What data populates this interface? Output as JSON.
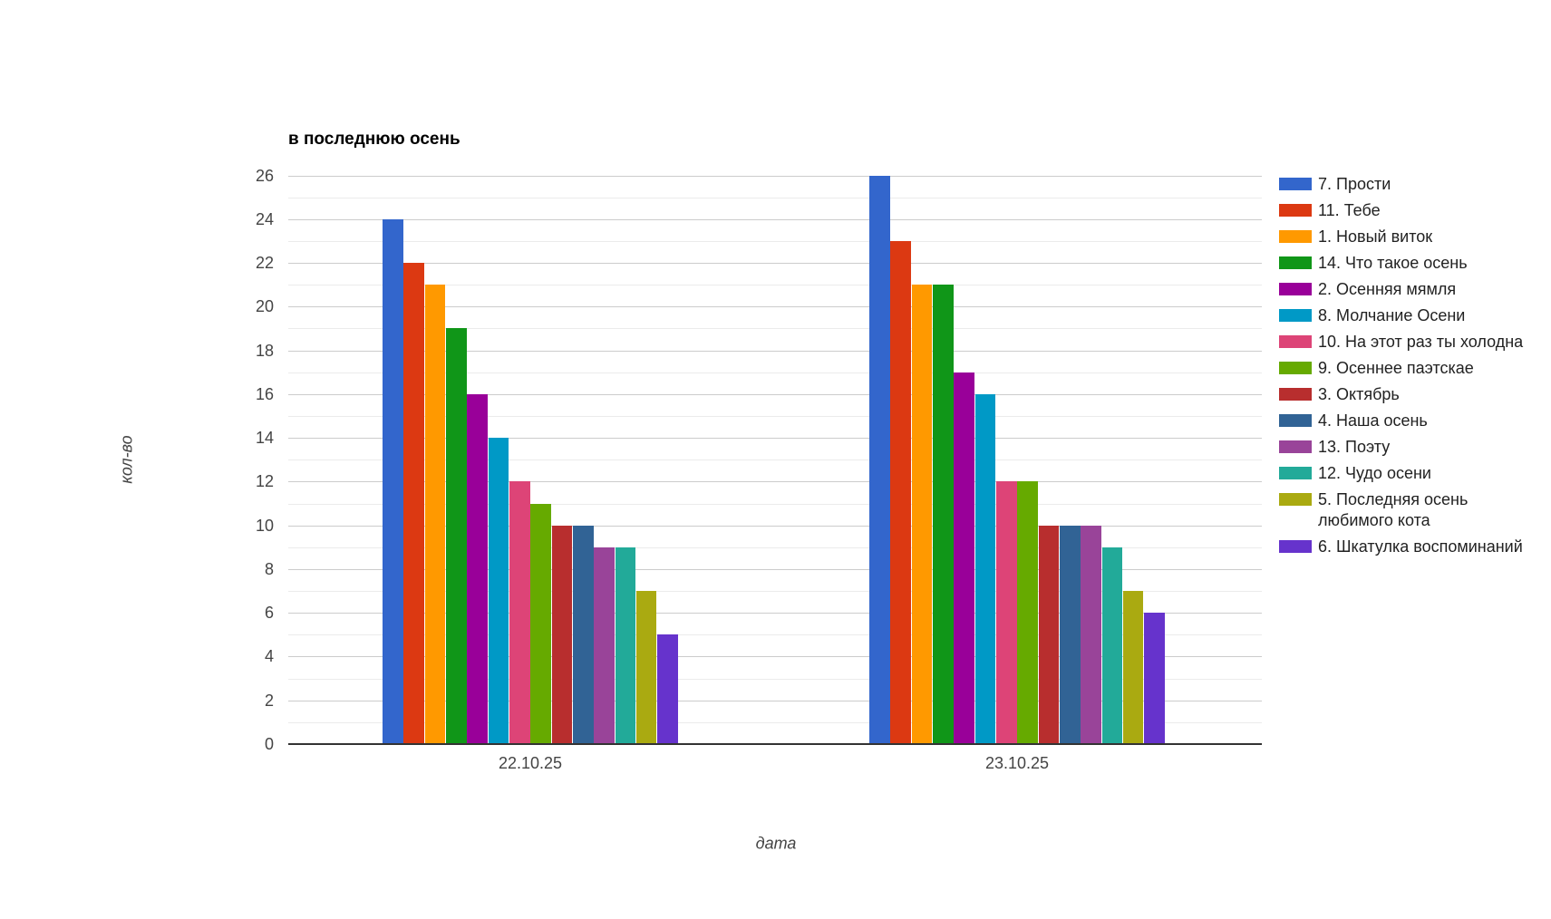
{
  "chart_data": {
    "type": "bar",
    "title": "в последнюю осень",
    "xlabel": "дата",
    "ylabel": "кол-во",
    "categories": [
      "22.10.25",
      "23.10.25"
    ],
    "series": [
      {
        "name": "7. Прости",
        "color": "#3366CC",
        "values": [
          24,
          26
        ]
      },
      {
        "name": "11. Тебе",
        "color": "#DC3912",
        "values": [
          22,
          23
        ]
      },
      {
        "name": "1. Новый виток",
        "color": "#FF9900",
        "values": [
          21,
          21
        ]
      },
      {
        "name": "14. Что такое осень",
        "color": "#109618",
        "values": [
          19,
          21
        ]
      },
      {
        "name": "2. Осенняя мямля",
        "color": "#990099",
        "values": [
          16,
          17
        ]
      },
      {
        "name": "8. Молчание Осени",
        "color": "#0099C6",
        "values": [
          14,
          16
        ]
      },
      {
        "name": "10. На этот раз ты холодна",
        "color": "#DD4477",
        "values": [
          12,
          12
        ]
      },
      {
        "name": "9. Осеннее паэтскае",
        "color": "#66AA00",
        "values": [
          11,
          12
        ]
      },
      {
        "name": "3. Октябрь",
        "color": "#B82E2E",
        "values": [
          10,
          10
        ]
      },
      {
        "name": "4. Наша осень",
        "color": "#316395",
        "values": [
          10,
          10
        ]
      },
      {
        "name": "13. Поэту",
        "color": "#994499",
        "values": [
          9,
          10
        ]
      },
      {
        "name": "12. Чудо осени",
        "color": "#22AA99",
        "values": [
          9,
          9
        ]
      },
      {
        "name": "5. Последняя осень\nлюбимого кота",
        "color": "#AAAA11",
        "values": [
          7,
          7
        ]
      },
      {
        "name": "6. Шкатулка воспоминаний",
        "color": "#6633CC",
        "values": [
          5,
          6
        ]
      }
    ],
    "ylim": [
      0,
      26
    ],
    "ytick_interval": 2,
    "minor_gridline_interval": 1,
    "grid": "horizontal",
    "legend_position": "right"
  },
  "colors": {
    "background": "#ffffff",
    "title_text": "#000000",
    "tick_text": "#444444",
    "legend_text": "#222222",
    "axis_line": "#333333",
    "major_gridline": "#cccccc",
    "minor_gridline": "#ebebeb"
  }
}
